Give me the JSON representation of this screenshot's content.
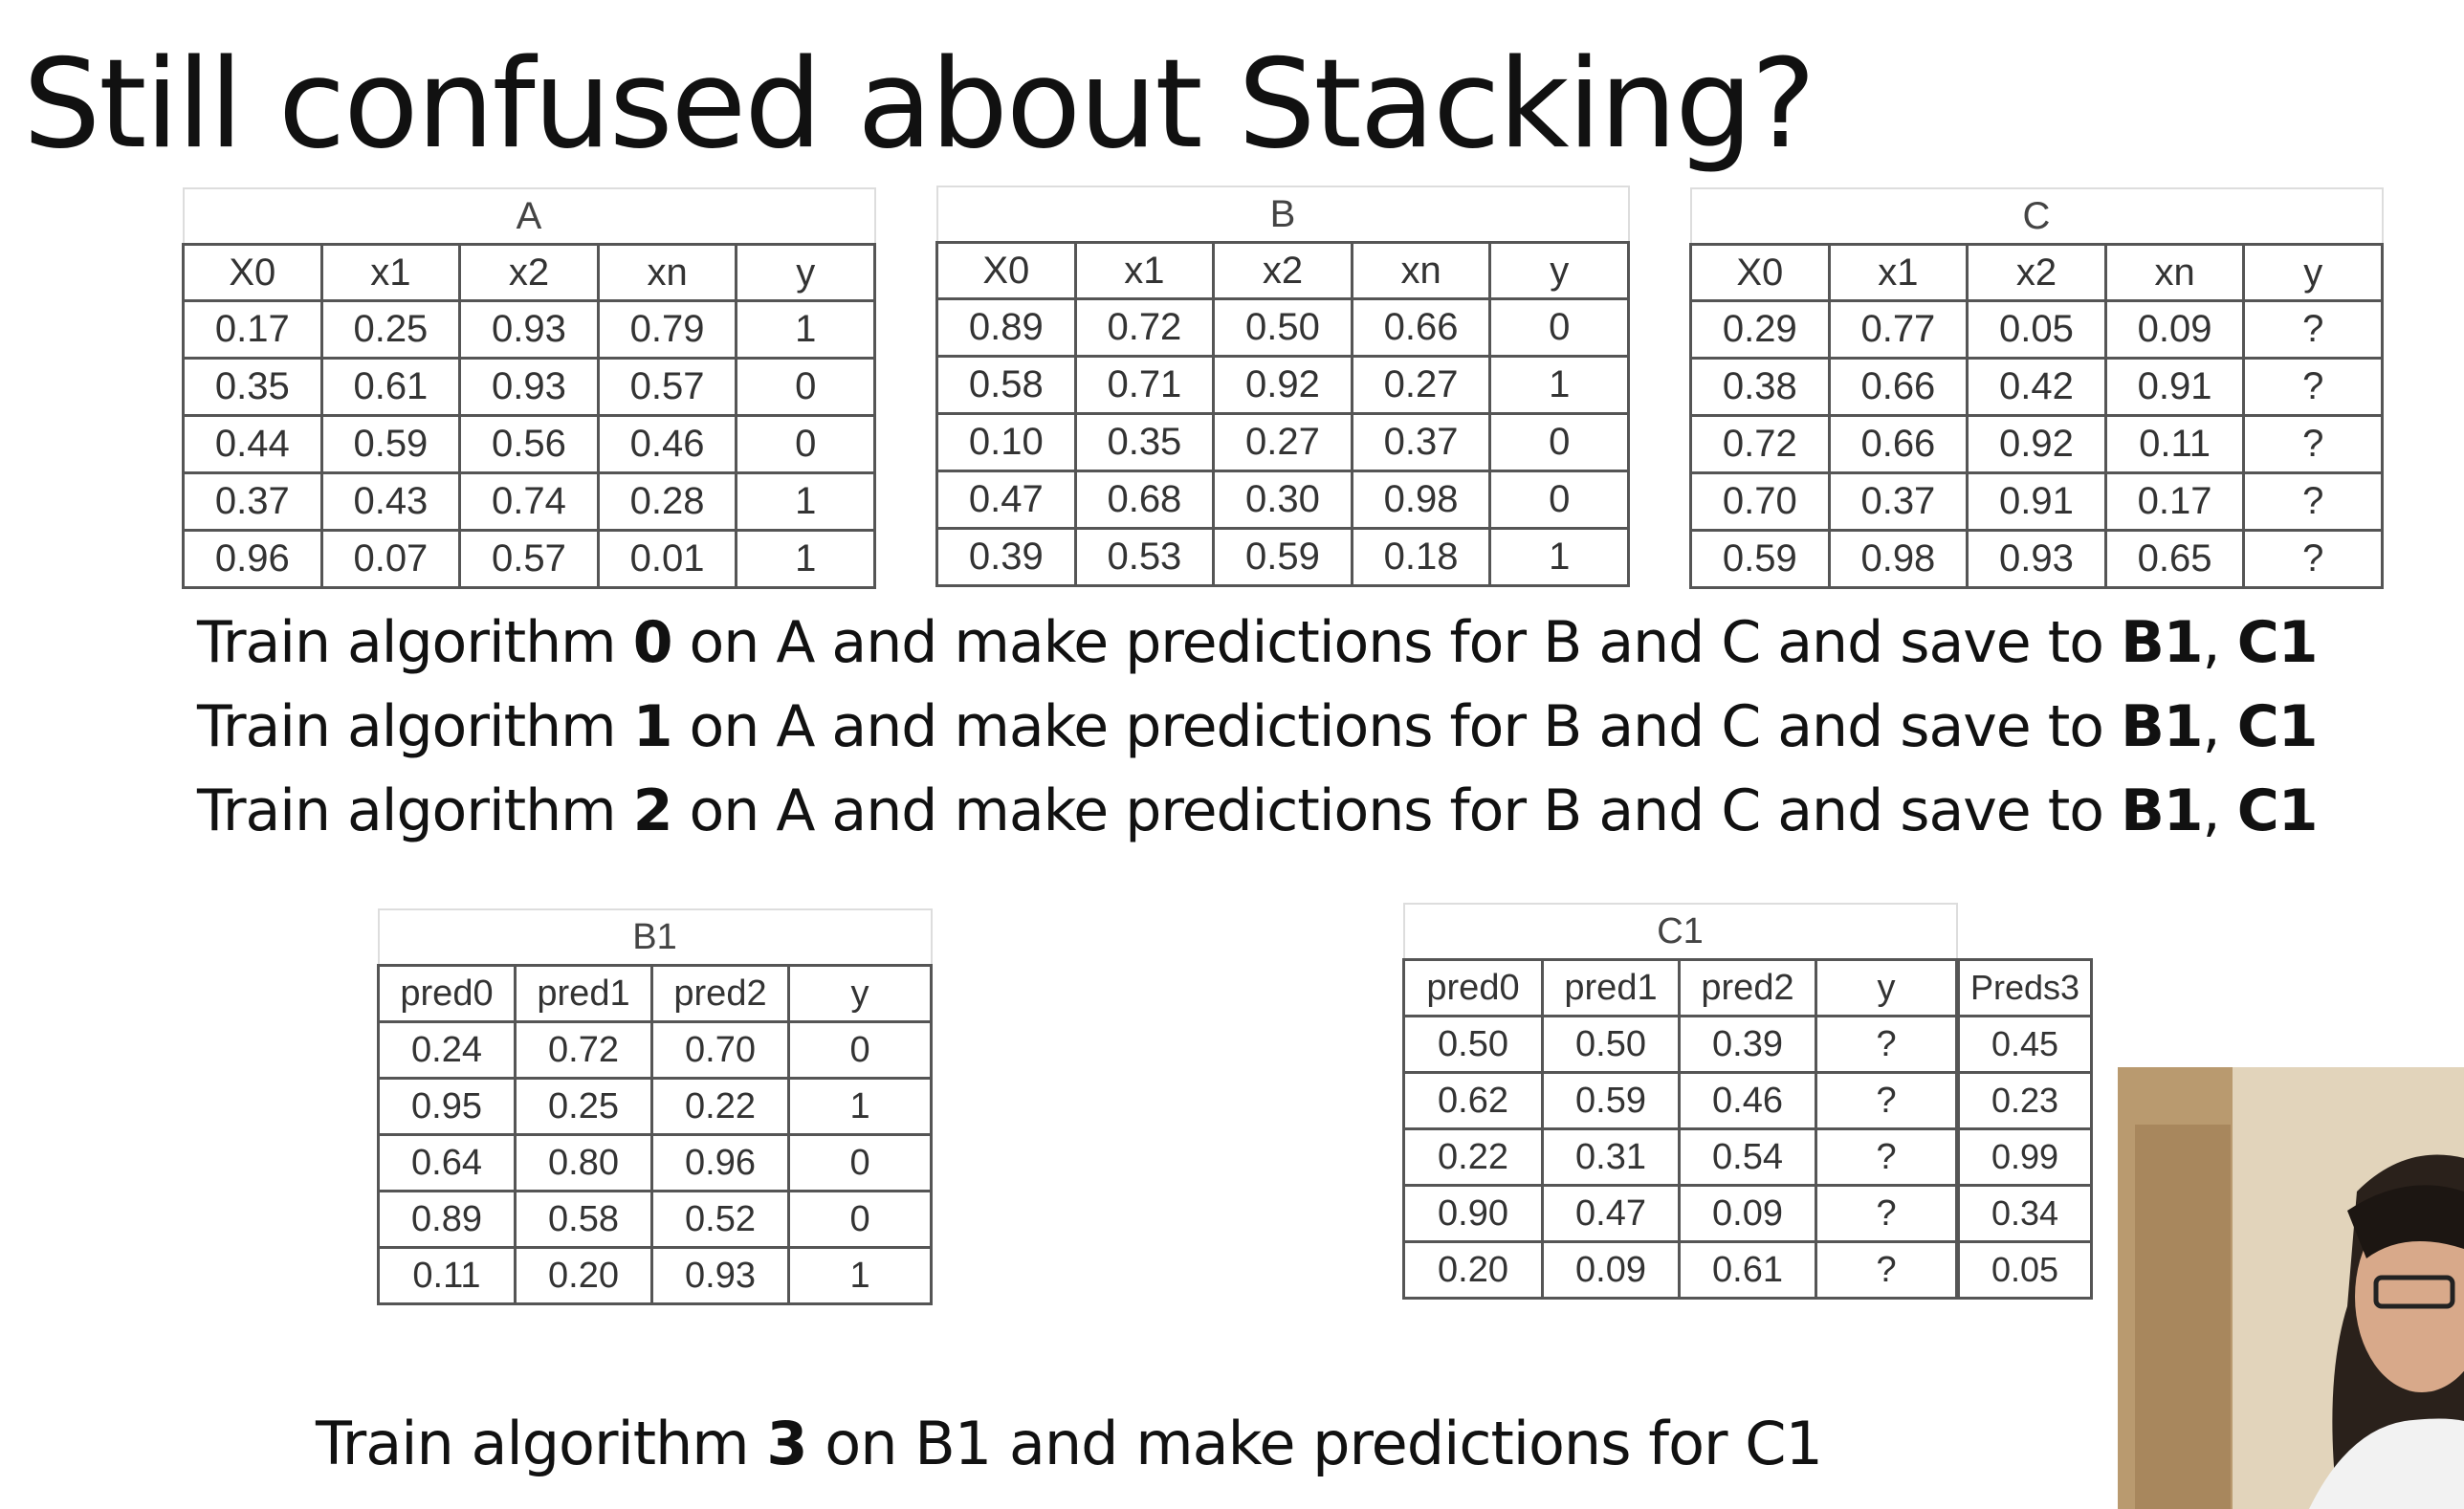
{
  "title": "Still confused about Stacking?",
  "tables": {
    "A": {
      "caption": "A",
      "columns": [
        "X0",
        "x1",
        "x2",
        "xn",
        "y"
      ],
      "rows": [
        [
          "0.17",
          "0.25",
          "0.93",
          "0.79",
          "1"
        ],
        [
          "0.35",
          "0.61",
          "0.93",
          "0.57",
          "0"
        ],
        [
          "0.44",
          "0.59",
          "0.56",
          "0.46",
          "0"
        ],
        [
          "0.37",
          "0.43",
          "0.74",
          "0.28",
          "1"
        ],
        [
          "0.96",
          "0.07",
          "0.57",
          "0.01",
          "1"
        ]
      ]
    },
    "B": {
      "caption": "B",
      "columns": [
        "X0",
        "x1",
        "x2",
        "xn",
        "y"
      ],
      "rows": [
        [
          "0.89",
          "0.72",
          "0.50",
          "0.66",
          "0"
        ],
        [
          "0.58",
          "0.71",
          "0.92",
          "0.27",
          "1"
        ],
        [
          "0.10",
          "0.35",
          "0.27",
          "0.37",
          "0"
        ],
        [
          "0.47",
          "0.68",
          "0.30",
          "0.98",
          "0"
        ],
        [
          "0.39",
          "0.53",
          "0.59",
          "0.18",
          "1"
        ]
      ]
    },
    "C": {
      "caption": "C",
      "columns": [
        "X0",
        "x1",
        "x2",
        "xn",
        "y"
      ],
      "rows": [
        [
          "0.29",
          "0.77",
          "0.05",
          "0.09",
          "?"
        ],
        [
          "0.38",
          "0.66",
          "0.42",
          "0.91",
          "?"
        ],
        [
          "0.72",
          "0.66",
          "0.92",
          "0.11",
          "?"
        ],
        [
          "0.70",
          "0.37",
          "0.91",
          "0.17",
          "?"
        ],
        [
          "0.59",
          "0.98",
          "0.93",
          "0.65",
          "?"
        ]
      ]
    },
    "B1": {
      "caption": "B1",
      "columns": [
        "pred0",
        "pred1",
        "pred2",
        "y"
      ],
      "rows": [
        [
          "0.24",
          "0.72",
          "0.70",
          "0"
        ],
        [
          "0.95",
          "0.25",
          "0.22",
          "1"
        ],
        [
          "0.64",
          "0.80",
          "0.96",
          "0"
        ],
        [
          "0.89",
          "0.58",
          "0.52",
          "0"
        ],
        [
          "0.11",
          "0.20",
          "0.93",
          "1"
        ]
      ]
    },
    "C1": {
      "caption": "C1",
      "columns": [
        "pred0",
        "pred1",
        "pred2",
        "y"
      ],
      "rows": [
        [
          "0.50",
          "0.50",
          "0.39",
          "?"
        ],
        [
          "0.62",
          "0.59",
          "0.46",
          "?"
        ],
        [
          "0.22",
          "0.31",
          "0.54",
          "?"
        ],
        [
          "0.90",
          "0.47",
          "0.09",
          "?"
        ],
        [
          "0.20",
          "0.09",
          "0.61",
          "?"
        ]
      ]
    },
    "Preds3": {
      "header": "Preds3",
      "values": [
        "0.45",
        "0.23",
        "0.99",
        "0.34",
        "0.05"
      ]
    }
  },
  "instructions": [
    {
      "pre": "Train algorithm ",
      "num": "0",
      "mid": " on A and make predictions for B and C and save to ",
      "b1": "B1",
      "sep": ", ",
      "c1": "C1"
    },
    {
      "pre": "Train algorithm ",
      "num": "1",
      "mid": " on A and make predictions for B and C and save to ",
      "b1": "B1",
      "sep": ", ",
      "c1": "C1"
    },
    {
      "pre": "Train algorithm ",
      "num": "2",
      "mid": " on A and make predictions for B and C and save to ",
      "b1": "B1",
      "sep": ", ",
      "c1": "C1"
    }
  ],
  "final": {
    "pre": "Train algorithm ",
    "num": "3",
    "post": " on B1  and make predictions for C1"
  }
}
